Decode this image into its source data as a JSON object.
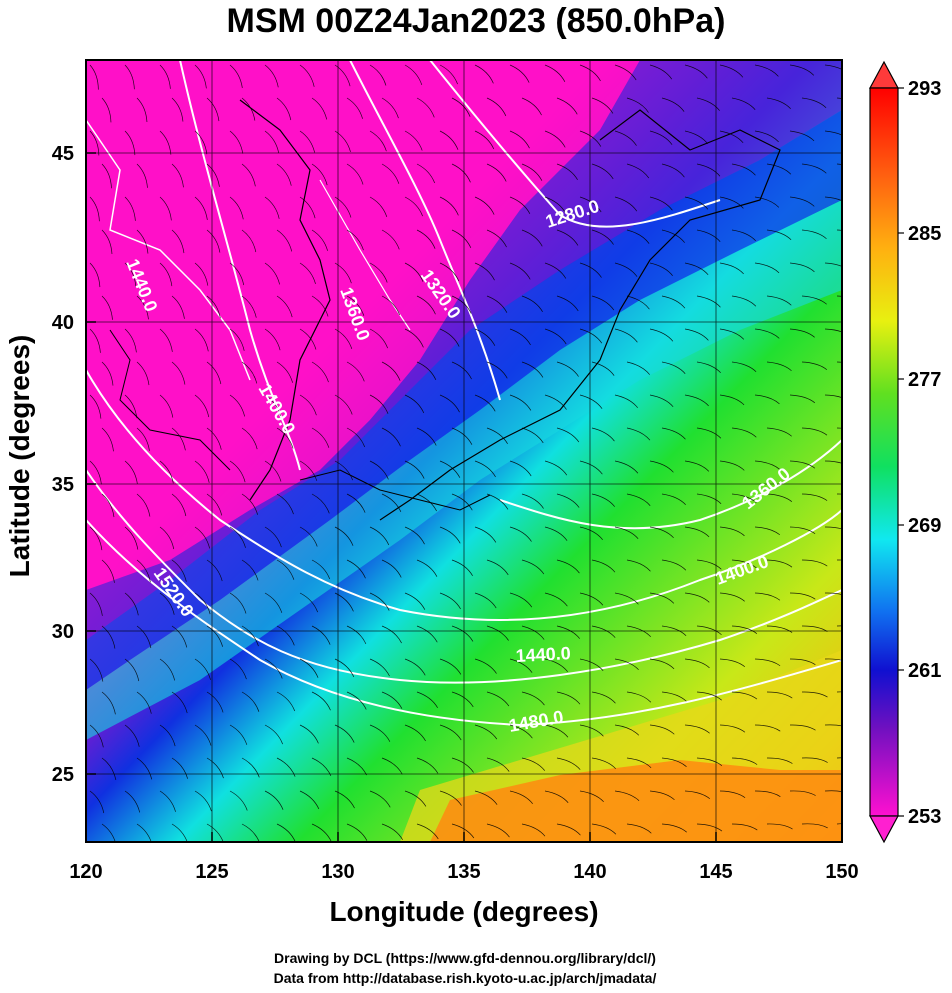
{
  "title": "MSM 00Z24Jan2023 (850.0hPa)",
  "xaxis": {
    "label": "Longitude (degrees)",
    "ticks": [
      "120",
      "125",
      "130",
      "135",
      "140",
      "145",
      "150"
    ]
  },
  "yaxis": {
    "label": "Latitude  (degrees)",
    "ticks": [
      "25",
      "30",
      "35",
      "40",
      "45"
    ]
  },
  "colorbar": {
    "ticks": [
      "293",
      "285",
      "277",
      "269",
      "261",
      "253"
    ]
  },
  "contour_labels": [
    "1280.0",
    "1320.0",
    "1360.0",
    "1400.0",
    "1440.0",
    "1520.0",
    "1360.0",
    "1400.0",
    "1440.0",
    "1480.0"
  ],
  "credits": {
    "line1": "Drawing by DCL (https://www.gfd-dennou.org/library/dcl/)",
    "line2": "Data from http://database.rish.kyoto-u.ac.jp/arch/jmadata/"
  },
  "colors": {
    "cold": "#ff10c8",
    "purple": "#7a1ad0",
    "blue": "#1030e0",
    "cyan": "#10e0e0",
    "green": "#20e030",
    "yellow": "#f0e010",
    "orange": "#ff7a10",
    "red": "#ff2020"
  }
}
